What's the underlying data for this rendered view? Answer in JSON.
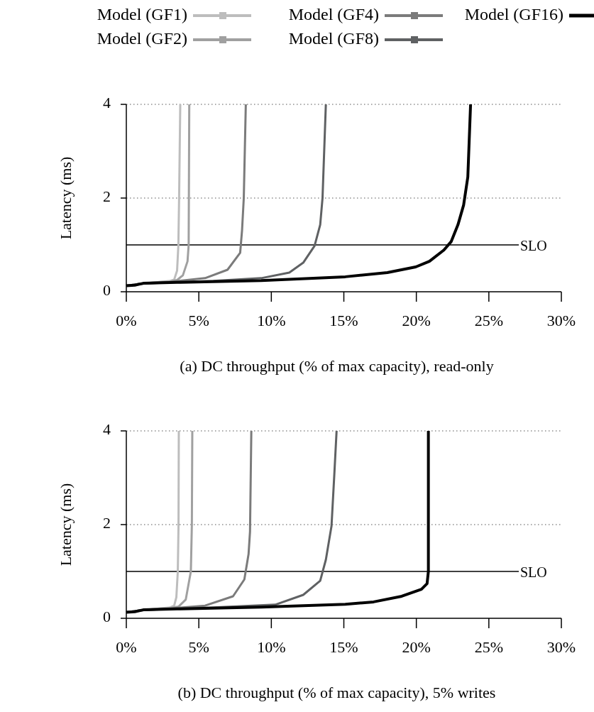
{
  "chart_data": [
    {
      "type": "line",
      "xlabel": "(a) DC throughput (% of max capacity), read-only",
      "ylabel": "Latency (ms)",
      "xlim": [
        0,
        30
      ],
      "xticks": [
        {
          "value": 0,
          "label": "0%"
        },
        {
          "value": 5,
          "label": "5%"
        },
        {
          "value": 10,
          "label": "10%"
        },
        {
          "value": 15,
          "label": "15%"
        },
        {
          "value": 20,
          "label": "20%"
        },
        {
          "value": 25,
          "label": "25%"
        },
        {
          "value": 30,
          "label": "30%"
        }
      ],
      "ylim": [
        0,
        4
      ],
      "yticks": [
        0,
        2,
        4
      ],
      "grid": "y",
      "legend": "top",
      "line_style": "solid",
      "ref_lines": [
        {
          "axis": "y",
          "value": 1,
          "label": "SLO",
          "color": "#000000"
        }
      ],
      "series": [
        {
          "name": "Model (GF1)",
          "color": "#bdbdbd",
          "x": [
            0,
            1,
            2,
            3,
            3.3,
            3.5,
            3.59,
            3.64,
            3.72
          ],
          "values": [
            0.13,
            0.17,
            0.2,
            0.23,
            0.26,
            0.45,
            1,
            2,
            4
          ]
        },
        {
          "name": "Model (GF2)",
          "color": "#a0a0a0",
          "x": [
            0,
            1,
            2,
            3,
            3.5,
            3.9,
            4.22,
            4.3,
            4.34
          ],
          "values": [
            0.13,
            0.17,
            0.2,
            0.22,
            0.25,
            0.35,
            0.65,
            1,
            4
          ]
        },
        {
          "name": "Model (GF4)",
          "color": "#7b7b7b",
          "x": [
            0,
            1,
            3,
            5.43,
            6.98,
            7.85,
            7.98,
            8.1,
            8.24
          ],
          "values": [
            0.13,
            0.17,
            0.21,
            0.29,
            0.47,
            0.83,
            1.31,
            2,
            4
          ]
        },
        {
          "name": "Model (GF8)",
          "color": "#5f6163",
          "x": [
            0,
            1,
            3,
            6,
            9.3,
            11.24,
            12.2,
            12.98,
            13.37,
            13.53,
            13.76
          ],
          "values": [
            0.13,
            0.17,
            0.2,
            0.23,
            0.29,
            0.41,
            0.62,
            0.98,
            1.43,
            2,
            4
          ]
        },
        {
          "name": "Model (GF16)",
          "color": "#000000",
          "x": [
            0,
            0.58,
            1.16,
            3.49,
            9.3,
            15.1,
            18,
            19.96,
            20.9,
            21.9,
            22.4,
            22.87,
            23.26,
            23.55,
            23.74
          ],
          "values": [
            0.13,
            0.14,
            0.18,
            0.2,
            0.24,
            0.32,
            0.41,
            0.53,
            0.65,
            0.89,
            1.07,
            1.43,
            1.85,
            2.45,
            4
          ]
        }
      ]
    },
    {
      "type": "line",
      "xlabel": "(b) DC throughput (% of max capacity), 5% writes",
      "ylabel": "Latency (ms)",
      "xlim": [
        0,
        30
      ],
      "xticks": [
        {
          "value": 0,
          "label": "0%"
        },
        {
          "value": 5,
          "label": "5%"
        },
        {
          "value": 10,
          "label": "10%"
        },
        {
          "value": 15,
          "label": "15%"
        },
        {
          "value": 20,
          "label": "20%"
        },
        {
          "value": 25,
          "label": "25%"
        },
        {
          "value": 30,
          "label": "30%"
        }
      ],
      "ylim": [
        0,
        4
      ],
      "yticks": [
        0,
        2,
        4
      ],
      "grid": "y",
      "line_style": "solid",
      "ref_lines": [
        {
          "axis": "y",
          "value": 1,
          "label": "SLO",
          "color": "#000000"
        }
      ],
      "series": [
        {
          "color": "#bdbdbd",
          "x": [
            0,
            1,
            2,
            3,
            3.3,
            3.45,
            3.55,
            3.6,
            3.62
          ],
          "values": [
            0.13,
            0.17,
            0.2,
            0.23,
            0.27,
            0.45,
            1,
            2,
            4
          ]
        },
        {
          "color": "#a0a0a0",
          "x": [
            0,
            1,
            2,
            3,
            3.6,
            4.1,
            4.45,
            4.52,
            4.55
          ],
          "values": [
            0.13,
            0.17,
            0.2,
            0.22,
            0.25,
            0.4,
            1,
            2,
            4
          ]
        },
        {
          "color": "#7b7b7b",
          "x": [
            0,
            1,
            3,
            5.43,
            7.36,
            8.14,
            8.43,
            8.53,
            8.62
          ],
          "values": [
            0.13,
            0.17,
            0.21,
            0.27,
            0.47,
            0.83,
            1.37,
            1.85,
            4
          ]
        },
        {
          "color": "#5f6163",
          "x": [
            0,
            1,
            3,
            6,
            10.27,
            12.2,
            13.37,
            13.76,
            14.15,
            14.34,
            14.5
          ],
          "values": [
            0.13,
            0.17,
            0.2,
            0.23,
            0.29,
            0.5,
            0.8,
            1.25,
            1.97,
            3.05,
            4
          ]
        },
        {
          "color": "#000000",
          "x": [
            0,
            0.58,
            1.16,
            3.49,
            9.3,
            15.1,
            17.05,
            18.99,
            20.35,
            20.74,
            20.83,
            20.83
          ],
          "values": [
            0.13,
            0.14,
            0.18,
            0.2,
            0.24,
            0.3,
            0.35,
            0.47,
            0.62,
            0.74,
            1,
            4
          ]
        }
      ]
    }
  ]
}
